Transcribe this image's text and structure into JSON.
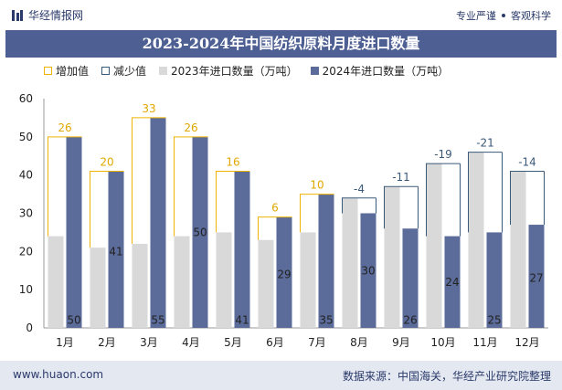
{
  "brand": {
    "name": "华经情报网"
  },
  "tagline": {
    "left": "专业严谨",
    "right": "客观科学"
  },
  "footer": {
    "website": "www.huaon.com",
    "source": "数据来源：中国海关，华经产业研究院整理"
  },
  "colors": {
    "y2023": "#d9d9d9",
    "y2024": "#5b6b9a",
    "increase": "#f0b400",
    "decrease": "#3a5a7a",
    "title_bg": "#4e5f93"
  },
  "chart_data": {
    "type": "bar",
    "title": "2023-2024年中国纺织原料月度进口数量",
    "categories": [
      "1月",
      "2月",
      "3月",
      "4月",
      "5月",
      "6月",
      "7月",
      "8月",
      "9月",
      "10月",
      "11月",
      "12月"
    ],
    "series": [
      {
        "name": "2023年进口数量（万吨）",
        "values": [
          24,
          21,
          22,
          24,
          25,
          23,
          25,
          34,
          37,
          43,
          46,
          41
        ]
      },
      {
        "name": "2024年进口数量（万吨）",
        "values": [
          50,
          41,
          55,
          50,
          41,
          29,
          35,
          30,
          26,
          24,
          25,
          27
        ]
      }
    ],
    "diff": [
      26,
      20,
      33,
      26,
      16,
      6,
      10,
      -4,
      -11,
      -19,
      -21,
      -14
    ],
    "legend": [
      "增加值",
      "减少值",
      "2023年进口数量（万吨）",
      "2024年进口数量（万吨）"
    ],
    "ylim": [
      0,
      60
    ],
    "yticks": [
      0,
      10,
      20,
      30,
      40,
      50,
      60
    ],
    "xlabel": "",
    "ylabel": ""
  }
}
